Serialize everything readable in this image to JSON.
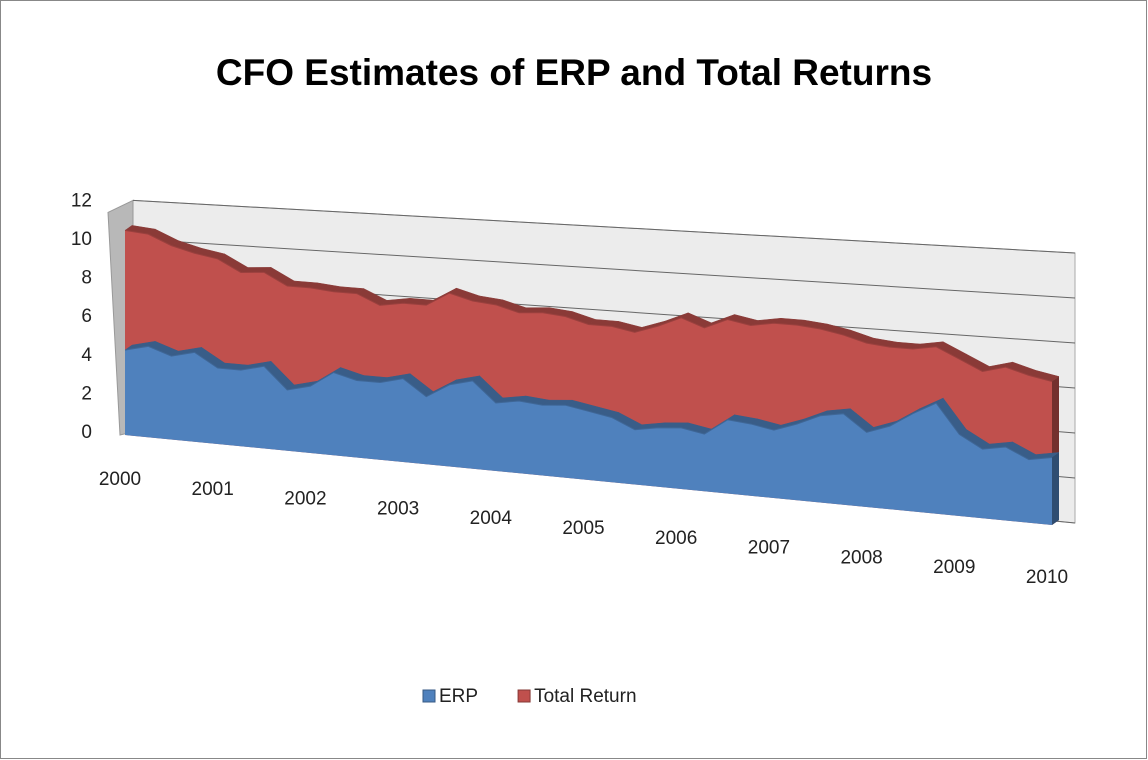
{
  "chart_data": {
    "type": "area3d",
    "title": "CFO Estimates of ERP and Total Returns",
    "categories": [
      "2000",
      null,
      null,
      null,
      "2001",
      null,
      null,
      null,
      "2002",
      null,
      null,
      null,
      "2003",
      null,
      null,
      null,
      "2004",
      null,
      null,
      null,
      "2005",
      null,
      null,
      null,
      "2006",
      null,
      null,
      null,
      "2007",
      null,
      null,
      null,
      "2008",
      null,
      null,
      null,
      "2009",
      null,
      null,
      null,
      "2010"
    ],
    "series": [
      {
        "name": "Total Return",
        "color": "#c0504d",
        "values": [
          10.6,
          10.5,
          10.0,
          9.7,
          9.5,
          8.9,
          9.0,
          8.4,
          8.4,
          8.3,
          8.3,
          7.8,
          8.0,
          8.0,
          8.7,
          8.4,
          8.3,
          8.0,
          8.1,
          8.0,
          7.7,
          7.7,
          7.5,
          7.9,
          8.4,
          8.0,
          8.5,
          8.3,
          8.5,
          8.5,
          8.4,
          8.2,
          7.9,
          7.8,
          7.8,
          8.0,
          7.5,
          7.0,
          7.3,
          7.0,
          6.8
        ]
      },
      {
        "name": "ERP",
        "color": "#4f81bd",
        "values": [
          4.4,
          4.7,
          4.3,
          4.6,
          3.9,
          3.9,
          4.2,
          3.1,
          3.4,
          4.2,
          3.9,
          3.9,
          4.2,
          3.4,
          4.1,
          4.4,
          3.4,
          3.6,
          3.5,
          3.6,
          3.4,
          3.2,
          2.7,
          2.9,
          3.0,
          2.8,
          3.6,
          3.5,
          3.3,
          3.7,
          4.2,
          4.4,
          3.6,
          4.0,
          4.7,
          5.3,
          3.9,
          3.3,
          3.5,
          3.0,
          3.2
        ]
      }
    ],
    "legend_order": [
      1,
      0
    ],
    "ylim": [
      0,
      12
    ],
    "yticks": [
      0,
      2,
      4,
      6,
      8,
      10,
      12
    ],
    "grid": true
  }
}
